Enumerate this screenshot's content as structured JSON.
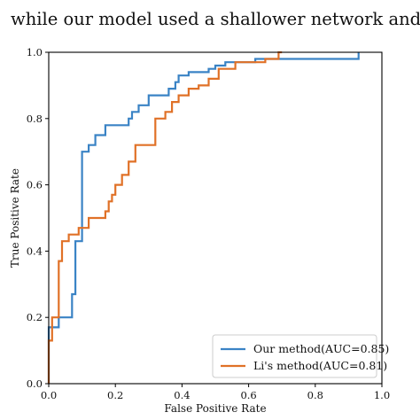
{
  "caption": {
    "line": "while our model used a shallower network and achieved better"
  },
  "chart_data": {
    "type": "line",
    "title": "",
    "xlabel": "False Positive Rate",
    "ylabel": "True Positive Rate",
    "xlim": [
      0.0,
      1.0
    ],
    "ylim": [
      0.0,
      1.0
    ],
    "xticks": [
      "0.0",
      "0.2",
      "0.4",
      "0.6",
      "0.8",
      "1.0"
    ],
    "yticks": [
      "0.0",
      "0.2",
      "0.4",
      "0.6",
      "0.8",
      "1.0"
    ],
    "grid": false,
    "legend_position": "lower-right",
    "series": [
      {
        "name": "Our method(AUC=0.85)",
        "color": "#3a83c5",
        "x": [
          0.0,
          0.0,
          0.03,
          0.03,
          0.07,
          0.07,
          0.08,
          0.08,
          0.1,
          0.1,
          0.12,
          0.12,
          0.14,
          0.14,
          0.17,
          0.17,
          0.24,
          0.24,
          0.25,
          0.25,
          0.27,
          0.27,
          0.3,
          0.3,
          0.36,
          0.36,
          0.38,
          0.38,
          0.39,
          0.39,
          0.42,
          0.42,
          0.48,
          0.48,
          0.5,
          0.5,
          0.53,
          0.53,
          0.55,
          0.55,
          0.62,
          0.62,
          0.93,
          0.93
        ],
        "y": [
          0.0,
          0.17,
          0.17,
          0.2,
          0.2,
          0.27,
          0.27,
          0.43,
          0.43,
          0.7,
          0.7,
          0.72,
          0.72,
          0.75,
          0.75,
          0.78,
          0.78,
          0.8,
          0.8,
          0.82,
          0.82,
          0.84,
          0.84,
          0.87,
          0.87,
          0.89,
          0.89,
          0.91,
          0.91,
          0.93,
          0.93,
          0.94,
          0.94,
          0.95,
          0.95,
          0.96,
          0.96,
          0.97,
          0.97,
          0.97,
          0.97,
          0.98,
          0.98,
          1.0
        ]
      },
      {
        "name": "Li's method(AUC=0.81)",
        "color": "#e07127",
        "x": [
          0.0,
          0.0,
          0.01,
          0.01,
          0.03,
          0.03,
          0.04,
          0.04,
          0.06,
          0.06,
          0.09,
          0.09,
          0.12,
          0.12,
          0.17,
          0.17,
          0.18,
          0.18,
          0.19,
          0.19,
          0.2,
          0.2,
          0.22,
          0.22,
          0.24,
          0.24,
          0.26,
          0.26,
          0.32,
          0.32,
          0.35,
          0.35,
          0.37,
          0.37,
          0.39,
          0.39,
          0.42,
          0.42,
          0.45,
          0.45,
          0.48,
          0.48,
          0.51,
          0.51,
          0.56,
          0.56,
          0.59,
          0.59,
          0.65,
          0.65,
          0.69,
          0.69,
          0.7
        ],
        "y": [
          0.0,
          0.13,
          0.13,
          0.2,
          0.2,
          0.37,
          0.37,
          0.43,
          0.43,
          0.45,
          0.45,
          0.47,
          0.47,
          0.5,
          0.5,
          0.52,
          0.52,
          0.55,
          0.55,
          0.57,
          0.57,
          0.6,
          0.6,
          0.63,
          0.63,
          0.67,
          0.67,
          0.72,
          0.72,
          0.8,
          0.8,
          0.82,
          0.82,
          0.85,
          0.85,
          0.87,
          0.87,
          0.89,
          0.89,
          0.9,
          0.9,
          0.92,
          0.92,
          0.95,
          0.95,
          0.97,
          0.97,
          0.97,
          0.97,
          0.98,
          0.98,
          1.0,
          1.0
        ]
      }
    ]
  }
}
